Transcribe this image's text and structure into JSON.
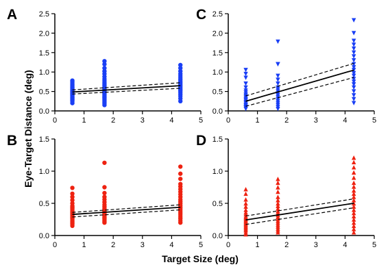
{
  "figure": {
    "xlabel": "Target Size (deg)",
    "ylabel": "Eye-Target Distance (deg)"
  },
  "chart_data": [
    {
      "panel": "A",
      "type": "scatter",
      "marker": "circle",
      "color": "#1a3ff5",
      "xlim": [
        0,
        5
      ],
      "ylim": [
        0,
        2.5
      ],
      "xticks": [
        "0",
        "1",
        "2",
        "3",
        "4",
        "5"
      ],
      "yticks": [
        "0.0",
        "0.5",
        "1.0",
        "1.5",
        "2.0",
        "2.5"
      ],
      "ytick_values": [
        0,
        0.5,
        1.0,
        1.5,
        2.0,
        2.5
      ],
      "groups": [
        {
          "x": 0.6,
          "y": [
            0.2,
            0.25,
            0.28,
            0.3,
            0.33,
            0.35,
            0.38,
            0.4,
            0.42,
            0.44,
            0.46,
            0.48,
            0.5,
            0.52,
            0.55,
            0.58,
            0.6,
            0.63,
            0.66,
            0.7,
            0.74,
            0.78
          ]
        },
        {
          "x": 1.7,
          "y": [
            0.15,
            0.2,
            0.24,
            0.28,
            0.32,
            0.35,
            0.38,
            0.41,
            0.44,
            0.47,
            0.5,
            0.53,
            0.56,
            0.6,
            0.64,
            0.68,
            0.72,
            0.77,
            0.82,
            0.88,
            0.95,
            1.02,
            1.1,
            1.2,
            1.28
          ]
        },
        {
          "x": 4.3,
          "y": [
            0.25,
            0.32,
            0.38,
            0.43,
            0.48,
            0.52,
            0.56,
            0.6,
            0.64,
            0.68,
            0.72,
            0.76,
            0.8,
            0.85,
            0.9,
            0.95,
            1.02,
            1.1,
            1.18
          ]
        }
      ],
      "fit": {
        "y_at_0": 0.46,
        "y_at_xmax": 0.68,
        "ci_low_at_0": 0.41,
        "ci_low_at_xmax": 0.61,
        "ci_high_at_0": 0.51,
        "ci_high_at_xmax": 0.76
      }
    },
    {
      "panel": "C",
      "type": "scatter",
      "marker": "triangle-down",
      "color": "#1a3ff5",
      "xlim": [
        0,
        5
      ],
      "ylim": [
        0,
        2.5
      ],
      "xticks": [
        "0",
        "1",
        "2",
        "3",
        "4",
        "5"
      ],
      "yticks": [
        "0.0",
        "0.5",
        "1.0",
        "1.5",
        "2.0",
        "2.5"
      ],
      "ytick_values": [
        0,
        0.5,
        1.0,
        1.5,
        2.0,
        2.5
      ],
      "groups": [
        {
          "x": 0.6,
          "y": [
            0.05,
            0.08,
            0.1,
            0.13,
            0.16,
            0.2,
            0.23,
            0.27,
            0.3,
            0.34,
            0.38,
            0.42,
            0.47,
            0.52,
            0.6,
            0.7,
            0.85,
            0.95,
            1.05
          ]
        },
        {
          "x": 1.7,
          "y": [
            0.05,
            0.1,
            0.15,
            0.2,
            0.25,
            0.3,
            0.35,
            0.4,
            0.45,
            0.5,
            0.55,
            0.6,
            0.7,
            0.8,
            0.9,
            1.2,
            1.2,
            1.78
          ]
        },
        {
          "x": 4.3,
          "y": [
            0.2,
            0.3,
            0.4,
            0.5,
            0.6,
            0.68,
            0.75,
            0.82,
            0.9,
            0.97,
            1.05,
            1.12,
            1.2,
            1.3,
            1.4,
            1.5,
            1.6,
            1.7,
            1.8,
            2.0,
            2.33
          ]
        }
      ],
      "fit": {
        "y_at_0": 0.12,
        "y_at_xmax": 1.2,
        "ci_low_at_0": 0.0,
        "ci_low_at_xmax": 1.0,
        "ci_high_at_0": 0.25,
        "ci_high_at_xmax": 1.38
      }
    },
    {
      "panel": "B",
      "type": "scatter",
      "marker": "circle",
      "color": "#ee2211",
      "xlim": [
        0,
        5
      ],
      "ylim": [
        0,
        1.5
      ],
      "xticks": [
        "0",
        "1",
        "2",
        "3",
        "4",
        "5"
      ],
      "yticks": [
        "0.0",
        "0.5",
        "1.0",
        "1.5"
      ],
      "ytick_values": [
        0,
        0.5,
        1.0,
        1.5
      ],
      "groups": [
        {
          "x": 0.6,
          "y": [
            0.15,
            0.18,
            0.2,
            0.22,
            0.24,
            0.26,
            0.28,
            0.3,
            0.32,
            0.34,
            0.36,
            0.38,
            0.4,
            0.42,
            0.44,
            0.46,
            0.5,
            0.55,
            0.6,
            0.65,
            0.74
          ]
        },
        {
          "x": 1.7,
          "y": [
            0.2,
            0.22,
            0.24,
            0.26,
            0.28,
            0.3,
            0.32,
            0.34,
            0.36,
            0.38,
            0.4,
            0.42,
            0.45,
            0.48,
            0.52,
            0.56,
            0.6,
            0.66,
            0.75,
            1.13
          ]
        },
        {
          "x": 4.3,
          "y": [
            0.2,
            0.23,
            0.26,
            0.29,
            0.32,
            0.35,
            0.38,
            0.41,
            0.44,
            0.47,
            0.5,
            0.53,
            0.56,
            0.6,
            0.64,
            0.68,
            0.72,
            0.76,
            0.8,
            0.88,
            0.96,
            1.07
          ]
        }
      ],
      "fit": {
        "y_at_0": 0.31,
        "y_at_xmax": 0.46,
        "ci_low_at_0": 0.27,
        "ci_low_at_xmax": 0.42,
        "ci_high_at_0": 0.34,
        "ci_high_at_xmax": 0.5
      }
    },
    {
      "panel": "D",
      "type": "scatter",
      "marker": "triangle-up",
      "color": "#ee2211",
      "xlim": [
        0,
        5
      ],
      "ylim": [
        0,
        1.5
      ],
      "xticks": [
        "0",
        "1",
        "2",
        "3",
        "4",
        "5"
      ],
      "yticks": [
        "0.0",
        "0.5",
        "1.0",
        "1.5"
      ],
      "ytick_values": [
        0,
        0.5,
        1.0,
        1.5
      ],
      "groups": [
        {
          "x": 0.6,
          "y": [
            0.02,
            0.05,
            0.08,
            0.1,
            0.12,
            0.14,
            0.16,
            0.18,
            0.2,
            0.22,
            0.24,
            0.26,
            0.28,
            0.3,
            0.33,
            0.36,
            0.4,
            0.45,
            0.5,
            0.56,
            0.65,
            0.72
          ]
        },
        {
          "x": 1.7,
          "y": [
            0.05,
            0.08,
            0.11,
            0.14,
            0.17,
            0.2,
            0.23,
            0.26,
            0.29,
            0.32,
            0.35,
            0.38,
            0.42,
            0.46,
            0.5,
            0.55,
            0.6,
            0.68,
            0.75,
            0.82,
            0.88
          ]
        },
        {
          "x": 4.3,
          "y": [
            0.05,
            0.1,
            0.15,
            0.2,
            0.25,
            0.3,
            0.35,
            0.4,
            0.45,
            0.5,
            0.55,
            0.6,
            0.65,
            0.7,
            0.76,
            0.82,
            0.9,
            0.98,
            1.06,
            1.14,
            1.21
          ]
        }
      ],
      "fit": {
        "y_at_0": 0.2,
        "y_at_xmax": 0.55,
        "ci_low_at_0": 0.13,
        "ci_low_at_xmax": 0.48,
        "ci_high_at_0": 0.26,
        "ci_high_at_xmax": 0.62
      }
    }
  ]
}
